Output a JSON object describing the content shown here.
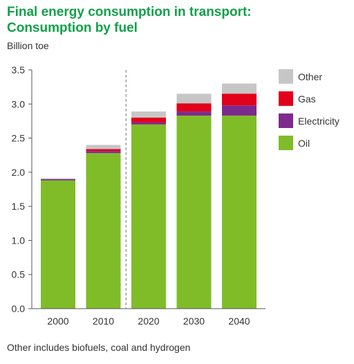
{
  "header": {
    "title_line1": "Final energy consumption in transport:",
    "title_line2": "Consumption by fuel",
    "unit": "Billion toe"
  },
  "footnote": "Other includes biofuels, coal and hydrogen",
  "chart_data": {
    "type": "bar",
    "stacked": true,
    "categories": [
      "2000",
      "2010",
      "2020",
      "2030",
      "2040"
    ],
    "series": [
      {
        "name": "Oil",
        "color": "#80bc28",
        "values": [
          1.88,
          2.28,
          2.7,
          2.83,
          2.83
        ]
      },
      {
        "name": "Electricity",
        "color": "#7d2a8e",
        "values": [
          0.02,
          0.03,
          0.03,
          0.06,
          0.15
        ]
      },
      {
        "name": "Gas",
        "color": "#e2001a",
        "values": [
          0.0,
          0.03,
          0.07,
          0.12,
          0.17
        ]
      },
      {
        "name": "Other",
        "color": "#c6c6c6",
        "values": [
          0.01,
          0.06,
          0.09,
          0.14,
          0.15
        ]
      }
    ],
    "legend_order": [
      "Other",
      "Gas",
      "Electricity",
      "Oil"
    ],
    "legend_position": "right",
    "ylim": [
      0,
      3.5
    ],
    "yticks": [
      "0.0",
      "0.5",
      "1.0",
      "1.5",
      "2.0",
      "2.5",
      "3.0",
      "3.5"
    ],
    "ylabel": "Billion toe",
    "xlabel": "",
    "grid": false,
    "divider_between": [
      "2010",
      "2020"
    ],
    "divider_style": "dashed"
  }
}
